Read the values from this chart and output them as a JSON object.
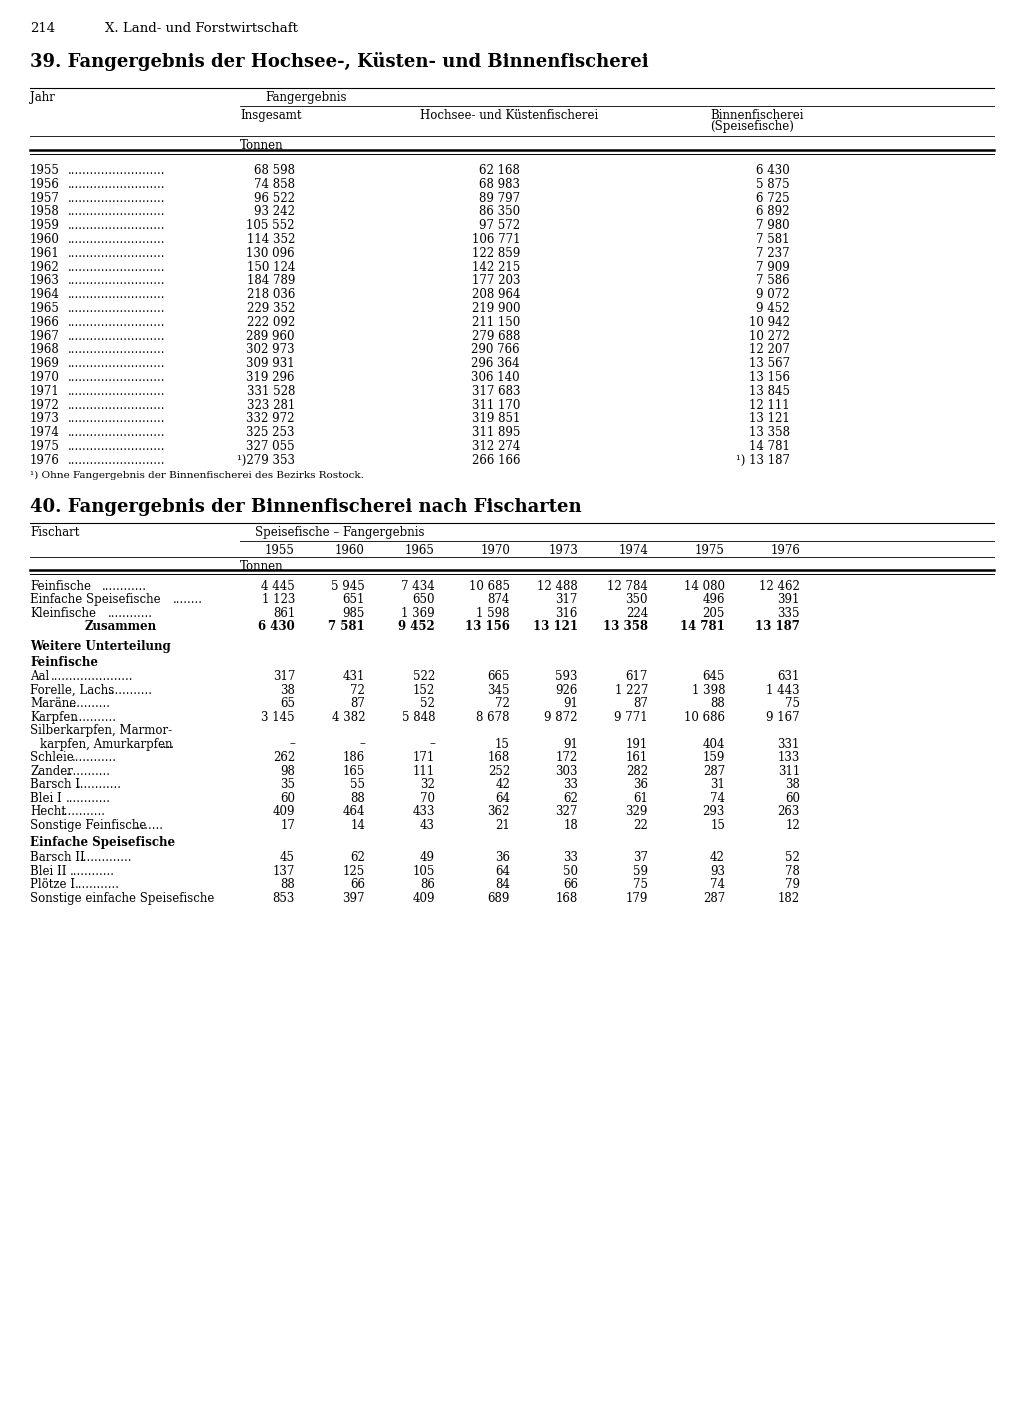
{
  "page_num": "214",
  "chapter": "X. Land- und Forstwirtschaft",
  "table1_title": "39. Fangergebnis der Hochsee-, Küsten- und Binnenfischerei",
  "table1_unit": "Tonnen",
  "table1_rows": [
    [
      "1955",
      "68 598",
      "62 168",
      "6 430"
    ],
    [
      "1956",
      "74 858",
      "68 983",
      "5 875"
    ],
    [
      "1957",
      "96 522",
      "89 797",
      "6 725"
    ],
    [
      "1958",
      "93 242",
      "86 350",
      "6 892"
    ],
    [
      "1959",
      "105 552",
      "97 572",
      "7 980"
    ],
    [
      "1960",
      "114 352",
      "106 771",
      "7 581"
    ],
    [
      "1961",
      "130 096",
      "122 859",
      "7 237"
    ],
    [
      "1962",
      "150 124",
      "142 215",
      "7 909"
    ],
    [
      "1963",
      "184 789",
      "177 203",
      "7 586"
    ],
    [
      "1964",
      "218 036",
      "208 964",
      "9 072"
    ],
    [
      "1965",
      "229 352",
      "219 900",
      "9 452"
    ],
    [
      "1966",
      "222 092",
      "211 150",
      "10 942"
    ],
    [
      "1967",
      "289 960",
      "279 688",
      "10 272"
    ],
    [
      "1968",
      "302 973",
      "290 766",
      "12 207"
    ],
    [
      "1969",
      "309 931",
      "296 364",
      "13 567"
    ],
    [
      "1970",
      "319 296",
      "306 140",
      "13 156"
    ],
    [
      "1971",
      "331 528",
      "317 683",
      "13 845"
    ],
    [
      "1972",
      "323 281",
      "311 170",
      "12 111"
    ],
    [
      "1973",
      "332 972",
      "319 851",
      "13 121"
    ],
    [
      "1974",
      "325 253",
      "311 895",
      "13 358"
    ],
    [
      "1975",
      "327 055",
      "312 274",
      "14 781"
    ],
    [
      "1976",
      "¹)279 353",
      "266 166",
      "¹) 13 187"
    ]
  ],
  "table1_footnote": "¹) Ohne Fangergebnis der Binnenfischerei des Bezirks Rostock.",
  "table2_title": "40. Fangergebnis der Binnenfischerei nach Fischarten",
  "table2_years": [
    "1955",
    "1960",
    "1965",
    "1970",
    "1973",
    "1974",
    "1975",
    "1976"
  ],
  "table2_unit": "Tonnen",
  "table2_main_rows": [
    [
      "Feinfische",
      "4 445",
      "5 945",
      "7 434",
      "10 685",
      "12 488",
      "12 784",
      "14 080",
      "12 462"
    ],
    [
      "Einfache Speisefische",
      "1 123",
      "651",
      "650",
      "874",
      "317",
      "350",
      "496",
      "391"
    ],
    [
      "Kleinfische",
      "861",
      "985",
      "1 369",
      "1 598",
      "316",
      "224",
      "205",
      "335"
    ]
  ],
  "table2_zusammen": [
    "Zusammen",
    "6 430",
    "7 581",
    "9 452",
    "13 156",
    "13 121",
    "13 358",
    "14 781",
    "13 187"
  ],
  "table2_feinfische_rows": [
    [
      "Aal",
      "317",
      "431",
      "522",
      "665",
      "593",
      "617",
      "645",
      "631"
    ],
    [
      "Forelle, Lachs",
      "38",
      "72",
      "152",
      "345",
      "926",
      "1 227",
      "1 398",
      "1 443"
    ],
    [
      "Maräne",
      "65",
      "87",
      "52",
      "72",
      "91",
      "87",
      "88",
      "75"
    ],
    [
      "Karpfen",
      "3 145",
      "4 382",
      "5 848",
      "8 678",
      "9 872",
      "9 771",
      "10 686",
      "9 167"
    ],
    [
      "Silberkarpfen, Marmor-|karpfen, Amurkarpfen",
      "–",
      "–",
      "–",
      "15",
      "91",
      "191",
      "404",
      "331"
    ],
    [
      "Schleie",
      "262",
      "186",
      "171",
      "168",
      "172",
      "161",
      "159",
      "133"
    ],
    [
      "Zander",
      "98",
      "165",
      "111",
      "252",
      "303",
      "282",
      "287",
      "311"
    ],
    [
      "Barsch I",
      "35",
      "55",
      "32",
      "42",
      "33",
      "36",
      "31",
      "38"
    ],
    [
      "Blei I",
      "60",
      "88",
      "70",
      "64",
      "62",
      "61",
      "74",
      "60"
    ],
    [
      "Hecht",
      "409",
      "464",
      "433",
      "362",
      "327",
      "329",
      "293",
      "263"
    ],
    [
      "Sonstige Feinfische",
      "17",
      "14",
      "43",
      "21",
      "18",
      "22",
      "15",
      "12"
    ]
  ],
  "table2_speisefische_rows": [
    [
      "Barsch II",
      "45",
      "62",
      "49",
      "36",
      "33",
      "37",
      "42",
      "52"
    ],
    [
      "Blei II",
      "137",
      "125",
      "105",
      "64",
      "50",
      "59",
      "93",
      "78"
    ],
    [
      "Plötze I",
      "88",
      "66",
      "86",
      "84",
      "66",
      "75",
      "74",
      "79"
    ],
    [
      "Sonstige einfache Speisefische",
      "853",
      "397",
      "409",
      "689",
      "168",
      "179",
      "287",
      "182"
    ]
  ]
}
